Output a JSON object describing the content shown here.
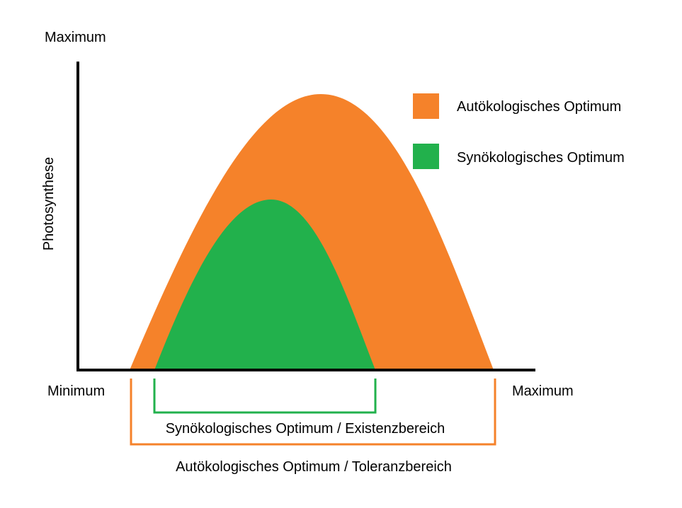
{
  "y_axis": {
    "top_label": "Maximum",
    "title": "Photosynthese"
  },
  "x_axis": {
    "left_label": "Minimum",
    "right_label": "Maximum"
  },
  "legend": {
    "items": [
      {
        "label": "Autökologisches Optimum",
        "color": "#F5822A"
      },
      {
        "label": "Synökologisches Optimum",
        "color": "#22B14C"
      }
    ]
  },
  "ranges": {
    "synecological": {
      "label": "Synökologisches Optimum / Existenzbereich",
      "color": "#22B14C"
    },
    "autecological": {
      "label": "Autökologisches Optimum / Toleranzbereich",
      "color": "#F5822A"
    }
  },
  "colors": {
    "orange": "#F5822A",
    "green": "#22B14C",
    "axis": "#000000"
  }
}
